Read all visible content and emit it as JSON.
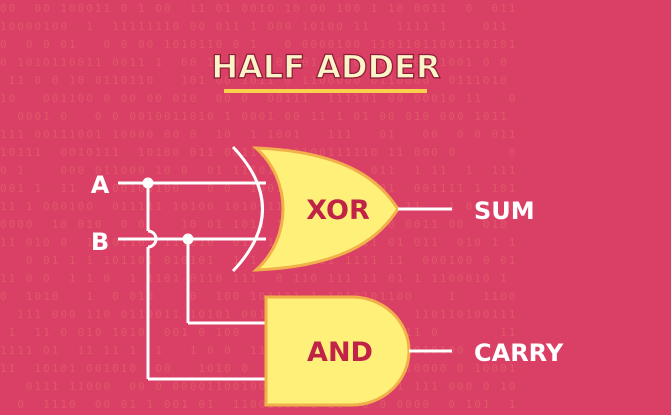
{
  "title": "HALF ADDER",
  "inputs": {
    "a": "A",
    "b": "B"
  },
  "gates": {
    "xor": "XOR",
    "and": "AND"
  },
  "outputs": {
    "sum": "SUM",
    "carry": "CARRY"
  },
  "colors": {
    "background": "#da3f66",
    "gate_fill": "#fff07a",
    "gate_outline": "#f2b04a",
    "gate_text": "#c02248",
    "wire": "#ffffff",
    "title_text": "#fbf4c8",
    "title_underline": "#f7d24a"
  }
}
